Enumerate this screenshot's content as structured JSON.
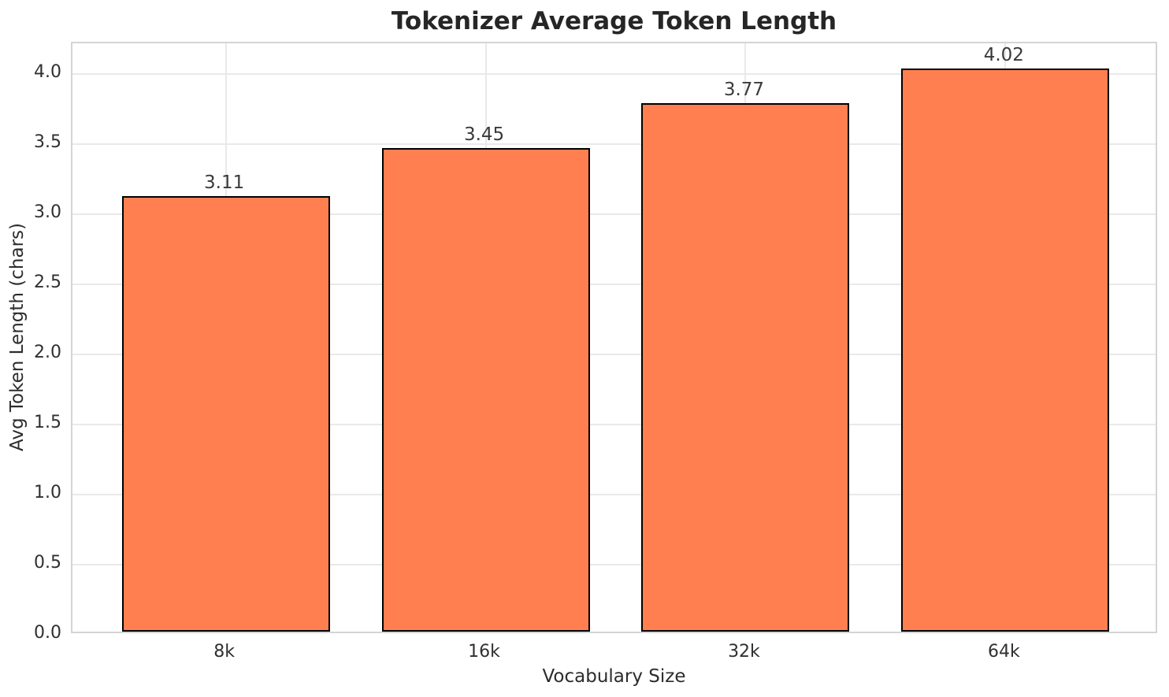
{
  "chart_data": {
    "type": "bar",
    "title": "Tokenizer Average Token Length",
    "xlabel": "Vocabulary Size",
    "ylabel": "Avg Token Length (chars)",
    "categories": [
      "8k",
      "16k",
      "32k",
      "64k"
    ],
    "values": [
      3.11,
      3.45,
      3.77,
      4.02
    ],
    "bar_labels": [
      "3.11",
      "3.45",
      "3.77",
      "4.02"
    ],
    "ylim": [
      0,
      4.22
    ],
    "yticks": [
      0.0,
      0.5,
      1.0,
      1.5,
      2.0,
      2.5,
      3.0,
      3.5,
      4.0
    ],
    "ytick_labels": [
      "0.0",
      "0.5",
      "1.0",
      "1.5",
      "2.0",
      "2.5",
      "3.0",
      "3.5",
      "4.0"
    ],
    "grid": true,
    "legend": false,
    "colors": {
      "bar_fill": "#FF7F50",
      "bar_edge": "#000000",
      "grid": "#e9e9e9",
      "spine": "#d4d4d4",
      "title_text": "#262626",
      "tick_text": "#303030",
      "axis_label_text": "#2c2c2c",
      "value_label_text": "#3a3a3a",
      "background": "#ffffff"
    }
  }
}
